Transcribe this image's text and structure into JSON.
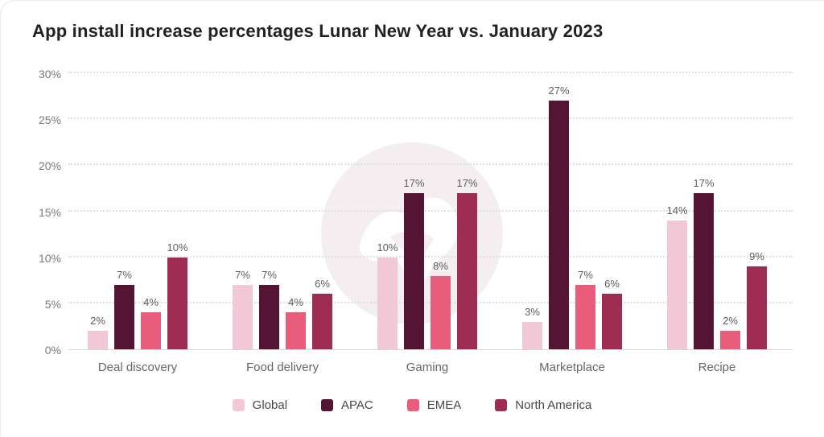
{
  "chart_data": {
    "type": "bar",
    "title": "App install increase percentages Lunar New Year vs. January 2023",
    "categories": [
      "Deal discovery",
      "Food delivery",
      "Gaming",
      "Marketplace",
      "Recipe"
    ],
    "series": [
      {
        "name": "Global",
        "color": "#F2C7D6",
        "values": [
          2,
          7,
          10,
          3,
          14
        ]
      },
      {
        "name": "APAC",
        "color": "#541434",
        "values": [
          7,
          7,
          17,
          27,
          17
        ]
      },
      {
        "name": "EMEA",
        "color": "#E85C7C",
        "values": [
          4,
          4,
          8,
          7,
          2
        ]
      },
      {
        "name": "North America",
        "color": "#9E2C52",
        "values": [
          10,
          6,
          17,
          6,
          9
        ]
      }
    ],
    "value_labels": [
      [
        "2%",
        "7%",
        "10%",
        "3%",
        "14%"
      ],
      [
        "7%",
        "7%",
        "17%",
        "27%",
        "17%"
      ],
      [
        "4%",
        "4%",
        "8%",
        "7%",
        "2%"
      ],
      [
        "10%",
        "6%",
        "17%",
        "6%",
        "9%"
      ]
    ],
    "ytick_labels": [
      "0%",
      "5%",
      "10%",
      "15%",
      "20%",
      "25%",
      "30%"
    ],
    "yticks": [
      0,
      5,
      10,
      15,
      20,
      25,
      30
    ],
    "ylim": [
      0,
      30
    ],
    "grid": "horizontal-dotted",
    "legend_position": "bottom",
    "watermark": "brand-logo-circle"
  },
  "style_colors": {
    "gridline": "#dedede",
    "baseline": "#d6d6d6",
    "watermark_circle": "#f4eef1",
    "watermark_glyph": "#ffffff"
  }
}
